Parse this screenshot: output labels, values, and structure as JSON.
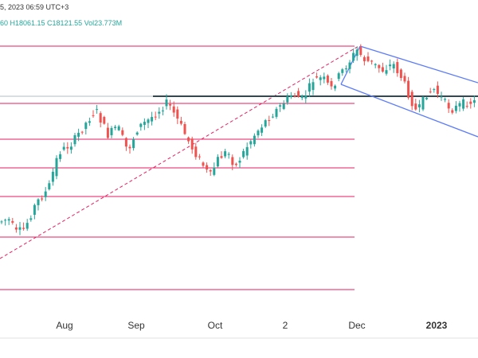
{
  "header": {
    "line1": "5, 2023 06:59 UTC+3",
    "line2": "60  H18061.15  C18121.55  Vol23.773M"
  },
  "colors": {
    "up": "#26a69a",
    "down": "#ef5350",
    "fib": "#e91e63",
    "resistance": "#37474f",
    "channel": "#5c7cfa",
    "trend": "#e91e63"
  },
  "chart_data": {
    "type": "candlestick",
    "x_ticks": [
      {
        "label": "Aug",
        "bold": false
      },
      {
        "label": "Sep",
        "bold": false
      },
      {
        "label": "Oct",
        "bold": false
      },
      {
        "label": "2",
        "bold": false
      },
      {
        "label": "Dec",
        "bold": false
      },
      {
        "label": "2023",
        "bold": true
      }
    ],
    "grid": false
  }
}
